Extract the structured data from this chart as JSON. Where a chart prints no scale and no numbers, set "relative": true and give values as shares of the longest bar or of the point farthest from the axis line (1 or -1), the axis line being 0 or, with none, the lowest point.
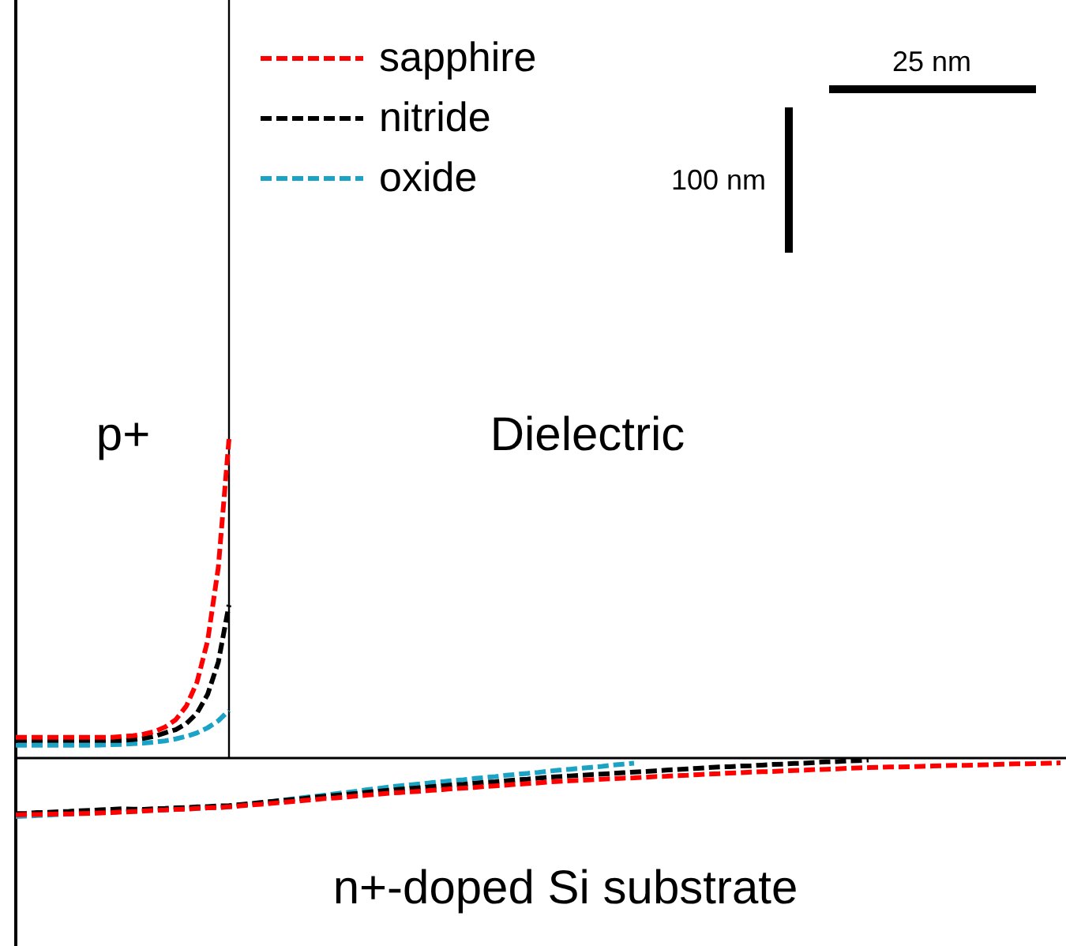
{
  "chart_data": {
    "type": "line",
    "relative": true,
    "line_style": "dashed",
    "legend": "top left",
    "categories": [
      null,
      null,
      null,
      null,
      null,
      null,
      null,
      null,
      null,
      null,
      null,
      null,
      null,
      null,
      null,
      null,
      null,
      null,
      null,
      null,
      null,
      null,
      null,
      null,
      null,
      null,
      null,
      null,
      null,
      null,
      null,
      null,
      null,
      null,
      null,
      null,
      null,
      null,
      null,
      null,
      null,
      null,
      null,
      null,
      null,
      null,
      null,
      null,
      null,
      null,
      null,
      null,
      null,
      null,
      null,
      null,
      null,
      null,
      null,
      null,
      null,
      null,
      null,
      null,
      null,
      null,
      null,
      null,
      null,
      null,
      null,
      null,
      null,
      null,
      null,
      null,
      null,
      null,
      null,
      null,
      null,
      null,
      null,
      null,
      null,
      null,
      null,
      null,
      null,
      null,
      null,
      null,
      null,
      null,
      null,
      null,
      null,
      null,
      null
    ],
    "annotations": [
      "p+",
      "Dielectric",
      "n+-doped Si substrate",
      "25 nm",
      "100 nm"
    ],
    "series": [
      {
        "name": "sapphire",
        "color": "#ff0000",
        "values": [
          0.065,
          0.065,
          0.065,
          0.065,
          0.065,
          0.065,
          0.065,
          0.065,
          0.065,
          0.065,
          0.068,
          0.07,
          0.075,
          0.083,
          0.097,
          0.12,
          0.163,
          0.238,
          0.368,
          0.598,
          1,
          null,
          null,
          null,
          null,
          null,
          null,
          null,
          null,
          null,
          null,
          null,
          null,
          null,
          null,
          null,
          null,
          null,
          null,
          null,
          null,
          null,
          null,
          null,
          null,
          null,
          null,
          null,
          null,
          null,
          null,
          null,
          null,
          null,
          null,
          null,
          null,
          null,
          null,
          null,
          null,
          null,
          null,
          null,
          null,
          null,
          null,
          null,
          null,
          null,
          null,
          null,
          null,
          null,
          null,
          null,
          null,
          null,
          null,
          null,
          null,
          null,
          null,
          null,
          null,
          null,
          null,
          null,
          null,
          null,
          null,
          null,
          null,
          null,
          null,
          null,
          null,
          null,
          null
        ]
      },
      {
        "name": "nitride",
        "color": "#000000",
        "values": [
          0.055,
          0.055,
          0.055,
          0.055,
          0.055,
          0.055,
          0.055,
          0.055,
          0.055,
          0.055,
          0.055,
          0.058,
          0.062,
          0.068,
          0.079,
          0.089,
          0.108,
          0.141,
          0.2,
          0.301,
          0.48,
          null,
          null,
          null,
          null,
          null,
          null,
          null,
          null,
          null,
          null,
          null,
          null,
          null,
          null,
          null,
          null,
          null,
          null,
          null,
          null,
          null,
          null,
          null,
          null,
          null,
          null,
          null,
          null,
          null,
          null,
          null,
          null,
          null,
          null,
          null,
          null,
          null,
          null,
          null,
          null,
          null,
          null,
          null,
          null,
          null,
          null,
          null,
          null,
          null,
          null,
          null,
          null,
          null,
          null,
          null,
          null,
          null,
          null,
          null,
          null,
          null,
          null,
          null,
          null,
          null,
          null,
          null,
          null,
          null,
          null,
          null,
          null,
          null,
          null,
          null,
          null,
          null,
          null
        ]
      },
      {
        "name": "oxide",
        "color": "#1ba3c6",
        "values": [
          0.04,
          0.04,
          0.04,
          0.04,
          0.04,
          0.04,
          0.04,
          0.04,
          0.041,
          0.042,
          0.043,
          0.045,
          0.047,
          0.05,
          0.054,
          0.06,
          0.068,
          0.079,
          0.095,
          0.117,
          0.149,
          null,
          null,
          null,
          null,
          null,
          null,
          null,
          null,
          null,
          null,
          null,
          null,
          null,
          null,
          null,
          null,
          null,
          null,
          null,
          null,
          null,
          null,
          null,
          null,
          null,
          null,
          null,
          null,
          null,
          null,
          null,
          null,
          null,
          null,
          null,
          null,
          null,
          null,
          null,
          null,
          null,
          null,
          null,
          null,
          null,
          null,
          null,
          null,
          null,
          null,
          null,
          null,
          null,
          null,
          null,
          null,
          null,
          null,
          null,
          null,
          null,
          null,
          null,
          null,
          null,
          null,
          null,
          null,
          null,
          null,
          null,
          null,
          null,
          null,
          null,
          null,
          null,
          null
        ]
      },
      {
        "color": "#ff0000",
        "values": [
          -0.178,
          -0.177,
          -0.177,
          -0.176,
          -0.175,
          -0.175,
          -0.174,
          -0.173,
          -0.172,
          -0.171,
          -0.169,
          -0.168,
          -0.166,
          -0.164,
          -0.163,
          -0.161,
          -0.16,
          -0.158,
          -0.156,
          -0.155,
          -0.153,
          -0.15,
          -0.147,
          -0.145,
          -0.142,
          -0.139,
          -0.136,
          -0.133,
          -0.13,
          -0.127,
          -0.125,
          -0.122,
          -0.119,
          -0.116,
          -0.113,
          -0.11,
          -0.108,
          -0.106,
          -0.104,
          -0.101,
          -0.099,
          -0.096,
          -0.094,
          -0.092,
          -0.089,
          -0.087,
          -0.085,
          -0.082,
          -0.08,
          -0.078,
          -0.075,
          -0.073,
          -0.071,
          -0.07,
          -0.068,
          -0.066,
          -0.065,
          -0.063,
          -0.062,
          -0.06,
          -0.058,
          -0.057,
          -0.055,
          -0.054,
          -0.052,
          -0.05,
          -0.049,
          -0.047,
          -0.046,
          -0.044,
          -0.043,
          -0.042,
          -0.04,
          -0.039,
          -0.038,
          -0.036,
          -0.035,
          -0.034,
          -0.032,
          -0.031,
          -0.03,
          -0.029,
          -0.028,
          -0.028,
          -0.027,
          -0.026,
          -0.025,
          -0.024,
          -0.023,
          -0.023,
          -0.022,
          -0.021,
          -0.02,
          -0.019,
          -0.018,
          -0.018,
          -0.017,
          -0.016,
          -0.015
        ]
      },
      {
        "color": "#000000",
        "values": [
          -0.174,
          -0.173,
          -0.171,
          -0.17,
          -0.168,
          -0.167,
          -0.165,
          -0.164,
          -0.162,
          -0.161,
          -0.159,
          -0.16,
          -0.161,
          -0.159,
          -0.158,
          -0.156,
          -0.155,
          -0.153,
          -0.152,
          -0.15,
          -0.149,
          -0.146,
          -0.143,
          -0.139,
          -0.136,
          -0.133,
          -0.13,
          -0.127,
          -0.123,
          -0.12,
          -0.117,
          -0.114,
          -0.111,
          -0.107,
          -0.104,
          -0.101,
          -0.098,
          -0.095,
          -0.093,
          -0.09,
          -0.087,
          -0.084,
          -0.082,
          -0.079,
          -0.076,
          -0.074,
          -0.071,
          -0.068,
          -0.066,
          -0.063,
          -0.06,
          -0.058,
          -0.056,
          -0.054,
          -0.052,
          -0.05,
          -0.048,
          -0.046,
          -0.044,
          -0.042,
          -0.04,
          -0.038,
          -0.036,
          -0.034,
          -0.032,
          -0.03,
          -0.028,
          -0.027,
          -0.025,
          -0.024,
          -0.022,
          -0.02,
          -0.019,
          -0.017,
          -0.016,
          -0.014,
          -0.012,
          -0.011,
          -0.009,
          -0.008,
          -0.006,
          null,
          null,
          null,
          null,
          null,
          null,
          null,
          null,
          null,
          null,
          null,
          null,
          null,
          null,
          null,
          null,
          null,
          null
        ]
      },
      {
        "color": "#1ba3c6",
        "values": [
          -0.183,
          -0.182,
          -0.18,
          -0.179,
          -0.177,
          -0.176,
          -0.174,
          -0.173,
          -0.171,
          -0.17,
          -0.168,
          -0.167,
          -0.165,
          -0.164,
          -0.162,
          -0.161,
          -0.159,
          -0.158,
          -0.156,
          -0.155,
          -0.153,
          -0.149,
          -0.145,
          -0.141,
          -0.137,
          -0.132,
          -0.128,
          -0.124,
          -0.12,
          -0.116,
          -0.112,
          -0.108,
          -0.104,
          -0.099,
          -0.095,
          -0.091,
          -0.087,
          -0.084,
          -0.081,
          -0.077,
          -0.074,
          -0.071,
          -0.068,
          -0.064,
          -0.061,
          -0.058,
          -0.054,
          -0.051,
          -0.048,
          -0.045,
          -0.041,
          -0.038,
          -0.035,
          -0.032,
          -0.029,
          -0.026,
          -0.022,
          -0.019,
          -0.016,
          null,
          null,
          null,
          null,
          null,
          null,
          null,
          null,
          null,
          null,
          null,
          null,
          null,
          null,
          null,
          null,
          null,
          null,
          null,
          null,
          null,
          null,
          null,
          null,
          null,
          null,
          null,
          null,
          null,
          null,
          null,
          null,
          null,
          null,
          null,
          null,
          null,
          null,
          null,
          null
        ]
      }
    ]
  }
}
